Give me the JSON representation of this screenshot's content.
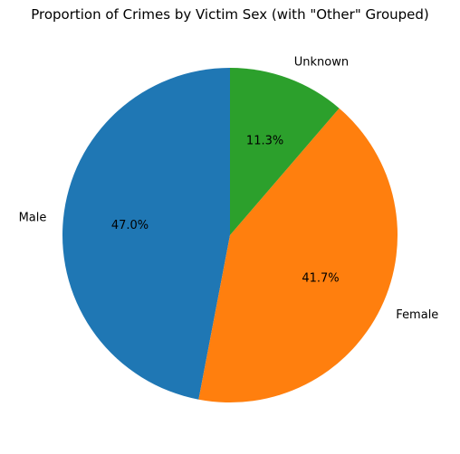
{
  "chart_data": {
    "type": "pie",
    "title": "Proportion of Crimes by Victim Sex (with \"Other\" Grouped)",
    "start_angle_deg": 90,
    "direction": "counterclockwise",
    "slices": [
      {
        "label": "Male",
        "percent": 47.0,
        "percent_label": "47.0%",
        "color": "#1f77b4"
      },
      {
        "label": "Female",
        "percent": 41.7,
        "percent_label": "41.7%",
        "color": "#ff7f0e"
      },
      {
        "label": "Unknown",
        "percent": 11.3,
        "percent_label": "11.3%",
        "color": "#2ca02c"
      }
    ]
  }
}
